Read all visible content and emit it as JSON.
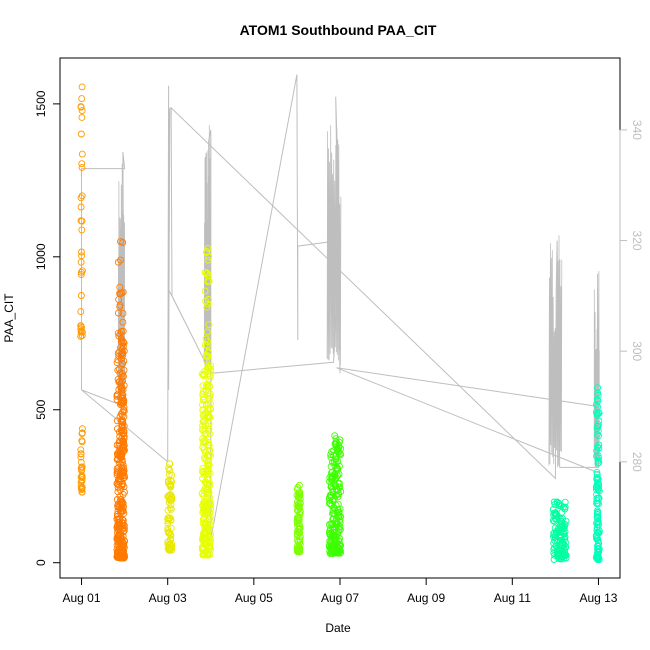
{
  "chart_data": {
    "type": "scatter",
    "title": "ATOM1 Southbound PAA_CIT",
    "xlabel": "Date",
    "ylabel": "PAA_CIT",
    "x_unit": "days",
    "x_ticks": [
      {
        "x": 0,
        "label": "Aug 01"
      },
      {
        "x": 2,
        "label": "Aug 03"
      },
      {
        "x": 4,
        "label": "Aug 05"
      },
      {
        "x": 6,
        "label": "Aug 07"
      },
      {
        "x": 8,
        "label": "Aug 09"
      },
      {
        "x": 10,
        "label": "Aug 11"
      },
      {
        "x": 12,
        "label": "Aug 13"
      }
    ],
    "xlim": [
      -0.5,
      12.5
    ],
    "ylim": [
      -50,
      1650
    ],
    "y_ticks": [
      0,
      500,
      1000,
      1500
    ],
    "y2lim": [
      259,
      353
    ],
    "y2_ticks": [
      280,
      300,
      320,
      340
    ],
    "grid": false,
    "legend": "none",
    "colors": {
      "axis": "#000000",
      "secondary_axis": "#bebebe",
      "secondary_line": "#bebebe"
    },
    "clusters": [
      {
        "x_start": -0.02,
        "x_end": 0.02,
        "y_low": 230,
        "y_high": 440,
        "count": 30,
        "color": "#ff9a00"
      },
      {
        "x_start": -0.02,
        "x_end": 0.02,
        "y_low": 740,
        "y_high": 1590,
        "count": 34,
        "color": "#ff9a00"
      },
      {
        "x_start": 0.82,
        "x_end": 1.0,
        "y_low": 15,
        "y_high": 720,
        "count": 320,
        "color": "#ff7a00"
      },
      {
        "x_start": 0.85,
        "x_end": 0.98,
        "y_low": 720,
        "y_high": 1070,
        "count": 25,
        "color": "#ff7a00"
      },
      {
        "x_start": 2.0,
        "x_end": 2.1,
        "y_low": 40,
        "y_high": 330,
        "count": 70,
        "color": "#e8e800"
      },
      {
        "x_start": 2.8,
        "x_end": 3.0,
        "y_low": 25,
        "y_high": 650,
        "count": 240,
        "color": "#e6ff00"
      },
      {
        "x_start": 2.85,
        "x_end": 2.97,
        "y_low": 650,
        "y_high": 1040,
        "count": 30,
        "color": "#e6ff00"
      },
      {
        "x_start": 5.0,
        "x_end": 5.08,
        "y_low": 35,
        "y_high": 260,
        "count": 70,
        "color": "#7cff00"
      },
      {
        "x_start": 5.75,
        "x_end": 6.02,
        "y_low": 30,
        "y_high": 420,
        "count": 200,
        "color": "#3cff00"
      },
      {
        "x_start": 10.95,
        "x_end": 11.25,
        "y_low": 10,
        "y_high": 200,
        "count": 120,
        "color": "#00ffa0"
      },
      {
        "x_start": 11.95,
        "x_end": 12.02,
        "y_low": 10,
        "y_high": 580,
        "count": 110,
        "color": "#00ffbb"
      }
    ],
    "secondary_series": {
      "name": "",
      "color": "#bebebe",
      "points": [
        [
          0.0,
          293
        ],
        [
          0.0,
          333
        ],
        [
          1.0,
          333
        ],
        [
          0.96,
          336
        ],
        [
          0.98,
          304
        ],
        [
          0.99,
          316
        ],
        [
          1.0,
          290
        ],
        [
          0.0,
          293
        ],
        [
          2.0,
          280
        ],
        [
          2.02,
          348
        ],
        [
          2.02,
          293
        ],
        [
          2.05,
          344
        ],
        [
          2.03,
          340
        ],
        [
          2.03,
          311
        ],
        [
          3.0,
          296
        ],
        [
          2.95,
          338
        ],
        [
          3.0,
          340
        ],
        [
          3.0,
          266
        ],
        [
          5.0,
          350
        ],
        [
          5.02,
          302
        ],
        [
          5.02,
          319
        ],
        [
          5.98,
          320
        ],
        [
          6.0,
          296
        ],
        [
          5.9,
          346
        ],
        [
          6.0,
          319
        ],
        [
          5.85,
          298
        ],
        [
          3.0,
          296
        ],
        [
          2.1,
          310
        ],
        [
          2.08,
          344
        ],
        [
          11.0,
          277
        ],
        [
          11.02,
          311
        ],
        [
          11.04,
          320
        ],
        [
          11.1,
          279
        ],
        [
          12.0,
          279
        ],
        [
          11.98,
          314
        ],
        [
          12.0,
          290
        ],
        [
          5.92,
          297
        ],
        [
          12.0,
          278
        ]
      ]
    }
  }
}
